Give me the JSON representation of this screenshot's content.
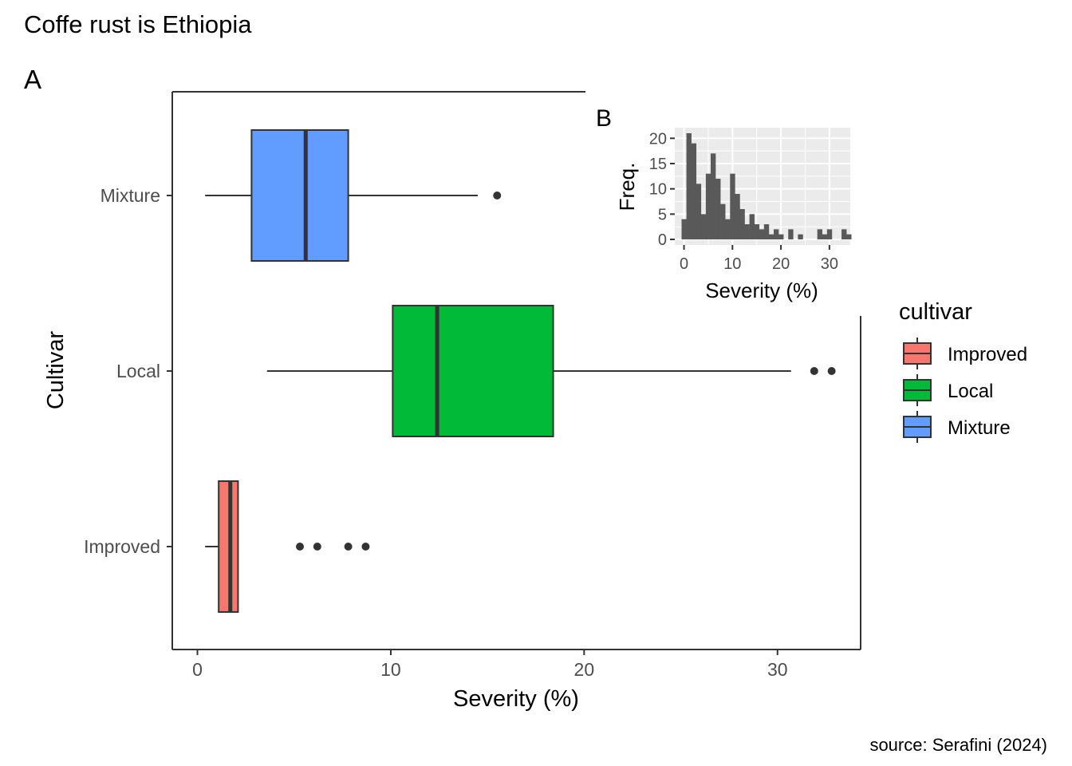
{
  "page": {
    "title": "Coffe rust is Ethiopia",
    "caption": "source: Serafini (2024)"
  },
  "chart_data": [
    {
      "type": "boxplot",
      "panel_label": "A",
      "xlabel": "Severity (%)",
      "ylabel": "Cultivar",
      "xlim": [
        -1.3,
        34.3
      ],
      "x_ticks": [
        0,
        10,
        20,
        30
      ],
      "grid": false,
      "legend": {
        "title": "cultivar",
        "placement": "right",
        "entries": [
          {
            "label": "Improved",
            "color": "#F8766D"
          },
          {
            "label": "Local",
            "color": "#00BA38"
          },
          {
            "label": "Mixture",
            "color": "#619CFF"
          }
        ]
      },
      "categories": [
        "Improved",
        "Local",
        "Mixture"
      ],
      "series": [
        {
          "category": "Improved",
          "color": "#F8766D",
          "whisker_low": 0.4,
          "q1": 1.1,
          "median": 1.7,
          "q3": 2.1,
          "whisker_high": 2.1,
          "outliers": [
            5.3,
            6.2,
            7.8,
            8.7
          ]
        },
        {
          "category": "Local",
          "color": "#00BA38",
          "whisker_low": 3.6,
          "q1": 10.1,
          "median": 12.4,
          "q3": 18.4,
          "whisker_high": 30.7,
          "outliers": [
            31.9,
            32.8
          ]
        },
        {
          "category": "Mixture",
          "color": "#619CFF",
          "whisker_low": 0.4,
          "q1": 2.8,
          "median": 5.6,
          "q3": 7.8,
          "whisker_high": 14.5,
          "outliers": [
            15.5
          ]
        }
      ]
    },
    {
      "type": "histogram",
      "panel_label": "B",
      "xlabel": "Severity (%)",
      "ylabel": "Freq.",
      "x_ticks": [
        0,
        10,
        20,
        30
      ],
      "y_ticks": [
        0,
        5,
        10,
        15,
        20
      ],
      "xlim": [
        -1.9,
        34.3
      ],
      "ylim": [
        -1.1,
        22.1
      ],
      "grid": true,
      "bin_width": 1,
      "bin_start": -0.5,
      "counts": [
        4,
        21,
        19,
        11,
        5,
        13,
        17,
        12,
        7,
        4,
        13,
        9,
        6,
        3,
        5,
        3,
        2,
        3,
        1,
        2,
        1,
        0,
        2,
        0,
        1,
        0,
        0,
        0,
        2,
        1,
        2,
        0,
        0,
        2,
        1
      ]
    }
  ]
}
